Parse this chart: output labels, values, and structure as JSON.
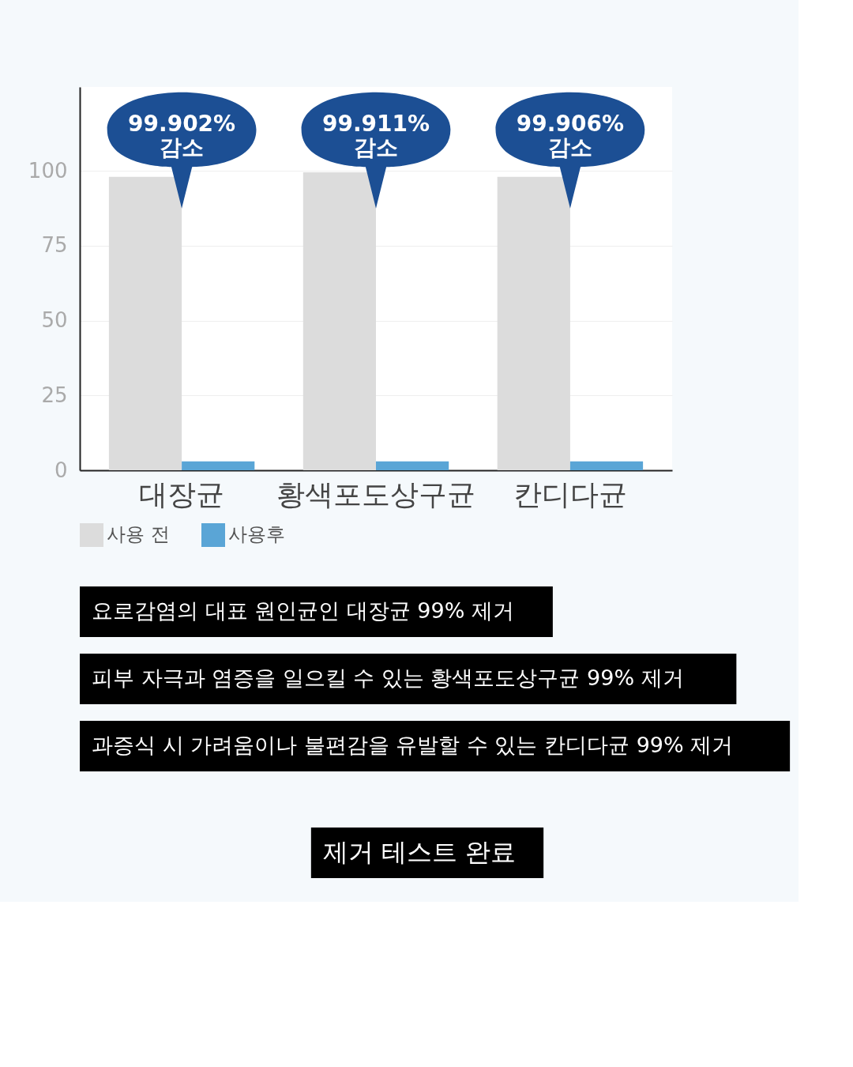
{
  "chart_data": {
    "type": "bar",
    "categories": [
      "대장균",
      "황색포도상구균",
      "칸디다균"
    ],
    "series": [
      {
        "name": "사용 전",
        "color": "#dcdcdc",
        "values": [
          98,
          99.5,
          98
        ]
      },
      {
        "name": "사용후",
        "color": "#5aa5d6",
        "values": [
          3,
          3,
          3
        ]
      }
    ],
    "ylim": [
      0,
      128
    ],
    "yticks": [
      0,
      25,
      50,
      75,
      100
    ],
    "grid": "y",
    "legend": "bottom",
    "annotations": [
      "99.902%\n감소",
      "99.911%\n감소",
      "99.906%\n감소",
      "요로감염의 대표 원인균인 대장균 99% 제거",
      "피부 자극과 염증을 일으킬 수 있는 황색포도상구균 99% 제거",
      "과증식 시 가려움이나 불편감을 유발할 수 있는 칸디다균 99% 제거",
      "제거 테스트 완료"
    ]
  }
}
